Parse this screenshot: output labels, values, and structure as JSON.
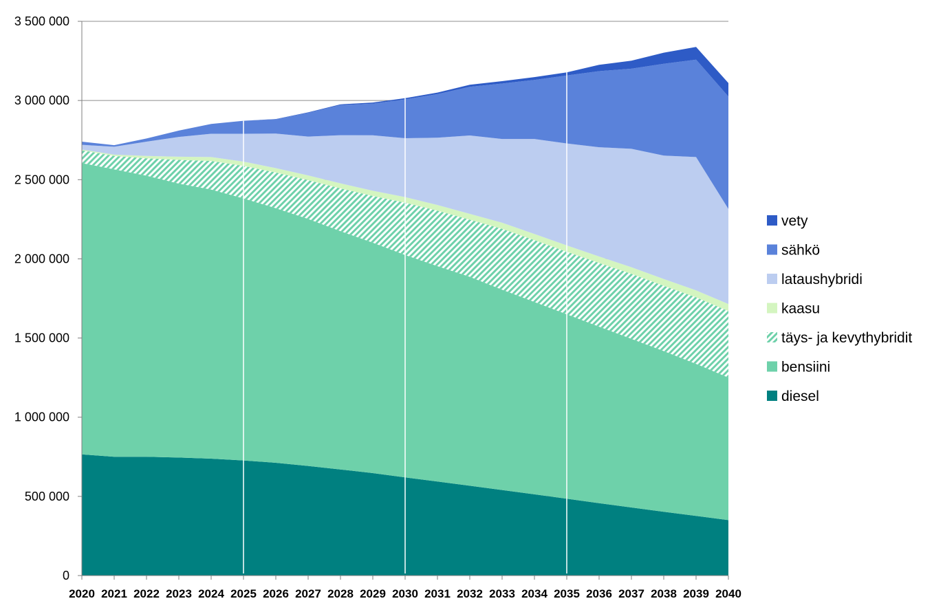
{
  "chart_data": {
    "type": "area",
    "stacked": true,
    "x": [
      "2020",
      "2021",
      "2022",
      "2023",
      "2024",
      "2025",
      "2026",
      "2027",
      "2028",
      "2029",
      "2030",
      "2031",
      "2032",
      "2033",
      "2034",
      "2035",
      "2036",
      "2037",
      "2038",
      "2039",
      "2040"
    ],
    "series": [
      {
        "name": "diesel",
        "color": "#008080",
        "pattern": "solid",
        "values": [
          765000,
          750000,
          750000,
          745000,
          738000,
          727000,
          712000,
          692000,
          670000,
          647000,
          620000,
          594000,
          567000,
          540000,
          513000,
          485000,
          457000,
          430000,
          403000,
          377000,
          350000
        ]
      },
      {
        "name": "bensiini",
        "color": "#6ed1aa",
        "pattern": "solid",
        "values": [
          1840000,
          1815000,
          1775000,
          1730000,
          1700000,
          1655000,
          1608000,
          1560000,
          1505000,
          1455000,
          1405000,
          1360000,
          1320000,
          1265000,
          1215000,
          1165000,
          1115000,
          1065000,
          1015000,
          960000,
          900000
        ]
      },
      {
        "name": "täys- ja kevythybridit",
        "color": "#6ed1aa",
        "pattern": "hatch",
        "values": [
          80000,
          85000,
          110000,
          150000,
          180000,
          205000,
          225000,
          245000,
          270000,
          295000,
          330000,
          350000,
          360000,
          385000,
          390000,
          395000,
          402000,
          410000,
          412000,
          420000,
          420000
        ]
      },
      {
        "name": "kaasu",
        "color": "#d4f5c0",
        "pattern": "solid",
        "values": [
          5000,
          8000,
          15000,
          20000,
          25000,
          27000,
          28000,
          30000,
          32000,
          33000,
          35000,
          36000,
          37000,
          38000,
          39000,
          40000,
          41000,
          42000,
          43000,
          44000,
          45000
        ]
      },
      {
        "name": "lataushybridi",
        "color": "#bccdf0",
        "pattern": "solid",
        "values": [
          30000,
          50000,
          90000,
          125000,
          147000,
          176000,
          218000,
          245000,
          304000,
          350000,
          372000,
          425000,
          495000,
          529000,
          600000,
          644000,
          690000,
          748000,
          779000,
          842000,
          600000
        ]
      },
      {
        "name": "sähkö",
        "color": "#5a82da",
        "pattern": "solid",
        "values": [
          20000,
          10000,
          20000,
          40000,
          62000,
          82000,
          90000,
          150000,
          190000,
          200000,
          245000,
          275000,
          307000,
          350000,
          373000,
          429000,
          480000,
          506000,
          580000,
          615000,
          710000
        ]
      },
      {
        "name": "vety",
        "color": "#2e5bc6",
        "pattern": "solid",
        "values": [
          0,
          0,
          0,
          0,
          0,
          0,
          2000,
          3000,
          5000,
          7000,
          8000,
          10000,
          13000,
          15000,
          18000,
          20000,
          40000,
          50000,
          70000,
          80000,
          85000
        ]
      }
    ],
    "ylim": [
      0,
      3500000
    ],
    "yticks": [
      0,
      500000,
      1000000,
      1500000,
      2000000,
      2500000,
      3000000,
      3500000
    ],
    "ytick_labels": [
      "0",
      "500 000",
      "1 000 000",
      "1 500 000",
      "2 000 000",
      "2 500 000",
      "3 000 000",
      "3 500 000"
    ],
    "gridlines": "horizontal",
    "vertical_markers": [
      "2025",
      "2030",
      "2035"
    ],
    "legend": {
      "position": "right",
      "order": [
        "vety",
        "sähkö",
        "lataushybridi",
        "kaasu",
        "täys- ja kevythybridit",
        "bensiini",
        "diesel"
      ]
    },
    "title": "",
    "xlabel": "",
    "ylabel": ""
  }
}
